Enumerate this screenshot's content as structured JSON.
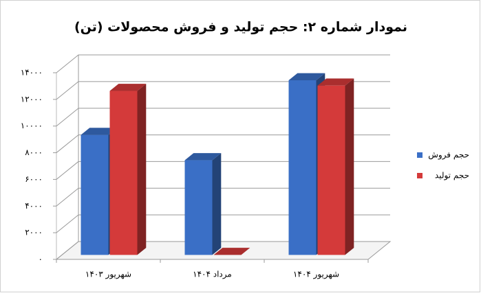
{
  "chart_data": {
    "type": "bar3d",
    "title": "نمودار شماره ۲: حجم تولید و فروش محصولات (تن)",
    "categories": [
      "شهریور ۱۴۰۳",
      "مرداد ۱۴۰۴",
      "شهریور ۱۴۰۴"
    ],
    "series": [
      {
        "name": "حجم فروش",
        "color": "#3a6fc6",
        "values": [
          9000,
          7100,
          13100
        ]
      },
      {
        "name": "حجم تولید",
        "color": "#d43a3a",
        "values": [
          12300,
          0,
          12700
        ]
      }
    ],
    "ylim": [
      0,
      14000
    ],
    "yticks": [
      {
        "value": 0,
        "label": "۰"
      },
      {
        "value": 2000,
        "label": "۲۰۰۰"
      },
      {
        "value": 4000,
        "label": "۴۰۰۰"
      },
      {
        "value": 6000,
        "label": "۶۰۰۰"
      },
      {
        "value": 8000,
        "label": "۸۰۰۰"
      },
      {
        "value": 10000,
        "label": "۱۰۰۰۰"
      },
      {
        "value": 12000,
        "label": "۱۲۰۰۰"
      },
      {
        "value": 14000,
        "label": "۱۴۰۰۰"
      }
    ],
    "grid": true,
    "legend": "right"
  }
}
